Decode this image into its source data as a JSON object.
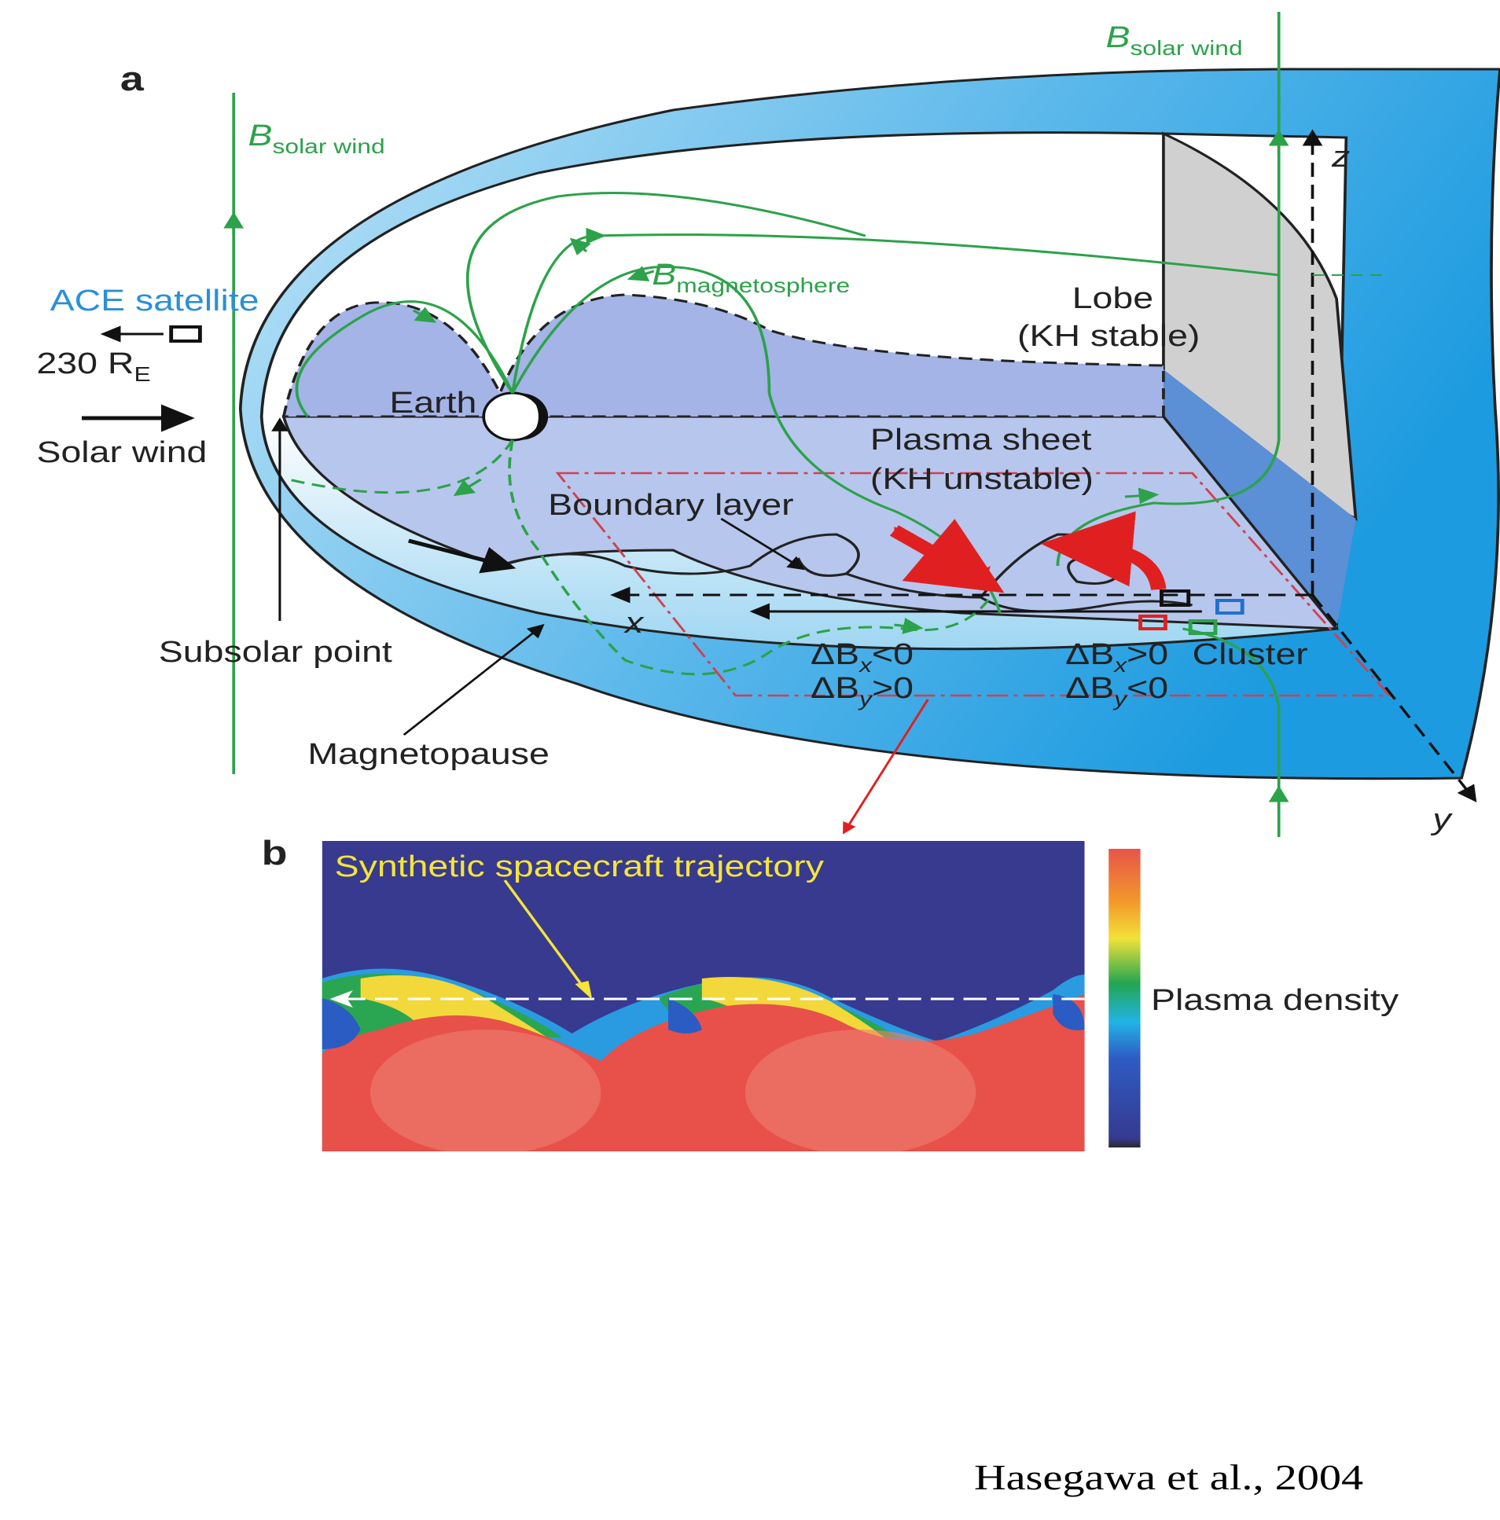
{
  "panel_a": {
    "label": "a",
    "b_solar_wind_left": {
      "main": "B",
      "sub": "solar wind"
    },
    "b_solar_wind_right": {
      "main": "B",
      "sub": "solar wind"
    },
    "ace": "ACE satellite",
    "distance": {
      "main": "230 R",
      "sub": "E"
    },
    "solar_wind": "Solar wind",
    "earth": "Earth",
    "b_magnetosphere": {
      "main": "B",
      "sub": "magnetosphere"
    },
    "lobe": [
      "Lobe",
      "(KH stable)"
    ],
    "plasma_sheet": [
      "Plasma sheet",
      "(KH unstable)"
    ],
    "boundary_layer": "Boundary layer",
    "axes": {
      "x": "x",
      "y": "y",
      "z": "z"
    },
    "subsolar_point": "Subsolar point",
    "magnetopause": "Magnetopause",
    "delta_left": [
      {
        "pre": "ΔB",
        "sub": "x",
        "post": "<0"
      },
      {
        "pre": "ΔB",
        "sub": "y",
        "post": ">0"
      }
    ],
    "delta_right": [
      {
        "pre": "ΔB",
        "sub": "x",
        "post": ">0"
      },
      {
        "pre": "ΔB",
        "sub": "y",
        "post": "<0"
      }
    ],
    "cluster": "Cluster"
  },
  "panel_b": {
    "label": "b",
    "trajectory": "Synthetic spacecraft trajectory",
    "colorbar_label": "Plasma density"
  },
  "citation": "Hasegawa et al., 2004"
}
